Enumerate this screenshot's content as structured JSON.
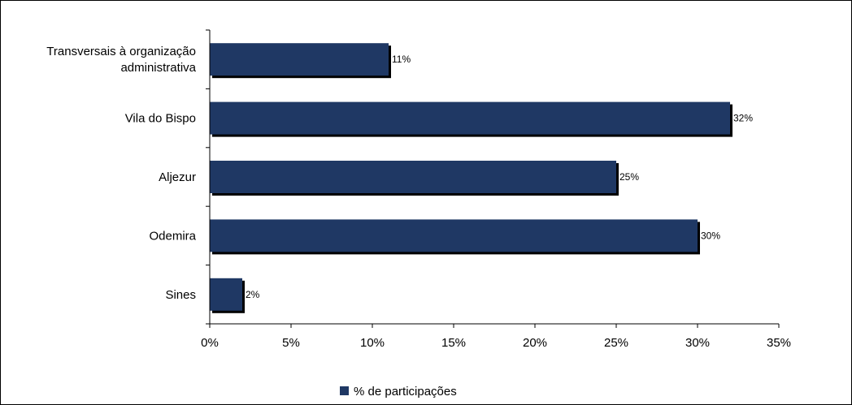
{
  "chart_data": {
    "type": "bar",
    "orientation": "horizontal",
    "categories": [
      "Transversais à organização administrativa",
      "Vila do Bispo",
      "Aljezur",
      "Odemira",
      "Sines"
    ],
    "category_lines": [
      [
        "Transversais à organização",
        "administrativa"
      ],
      [
        "Vila do Bispo"
      ],
      [
        "Aljezur"
      ],
      [
        "Odemira"
      ],
      [
        "Sines"
      ]
    ],
    "series": [
      {
        "name": "% de participações",
        "values": [
          11,
          32,
          25,
          30,
          2
        ]
      }
    ],
    "data_labels": [
      "11%",
      "32%",
      "25%",
      "30%",
      "2%"
    ],
    "x_ticks": [
      "0%",
      "5%",
      "10%",
      "15%",
      "20%",
      "25%",
      "30%",
      "35%"
    ],
    "xlim": [
      0,
      35
    ],
    "grid": false,
    "legend_position": "bottom",
    "bar_color": "#1f3864",
    "shadow_color": "#000000"
  }
}
